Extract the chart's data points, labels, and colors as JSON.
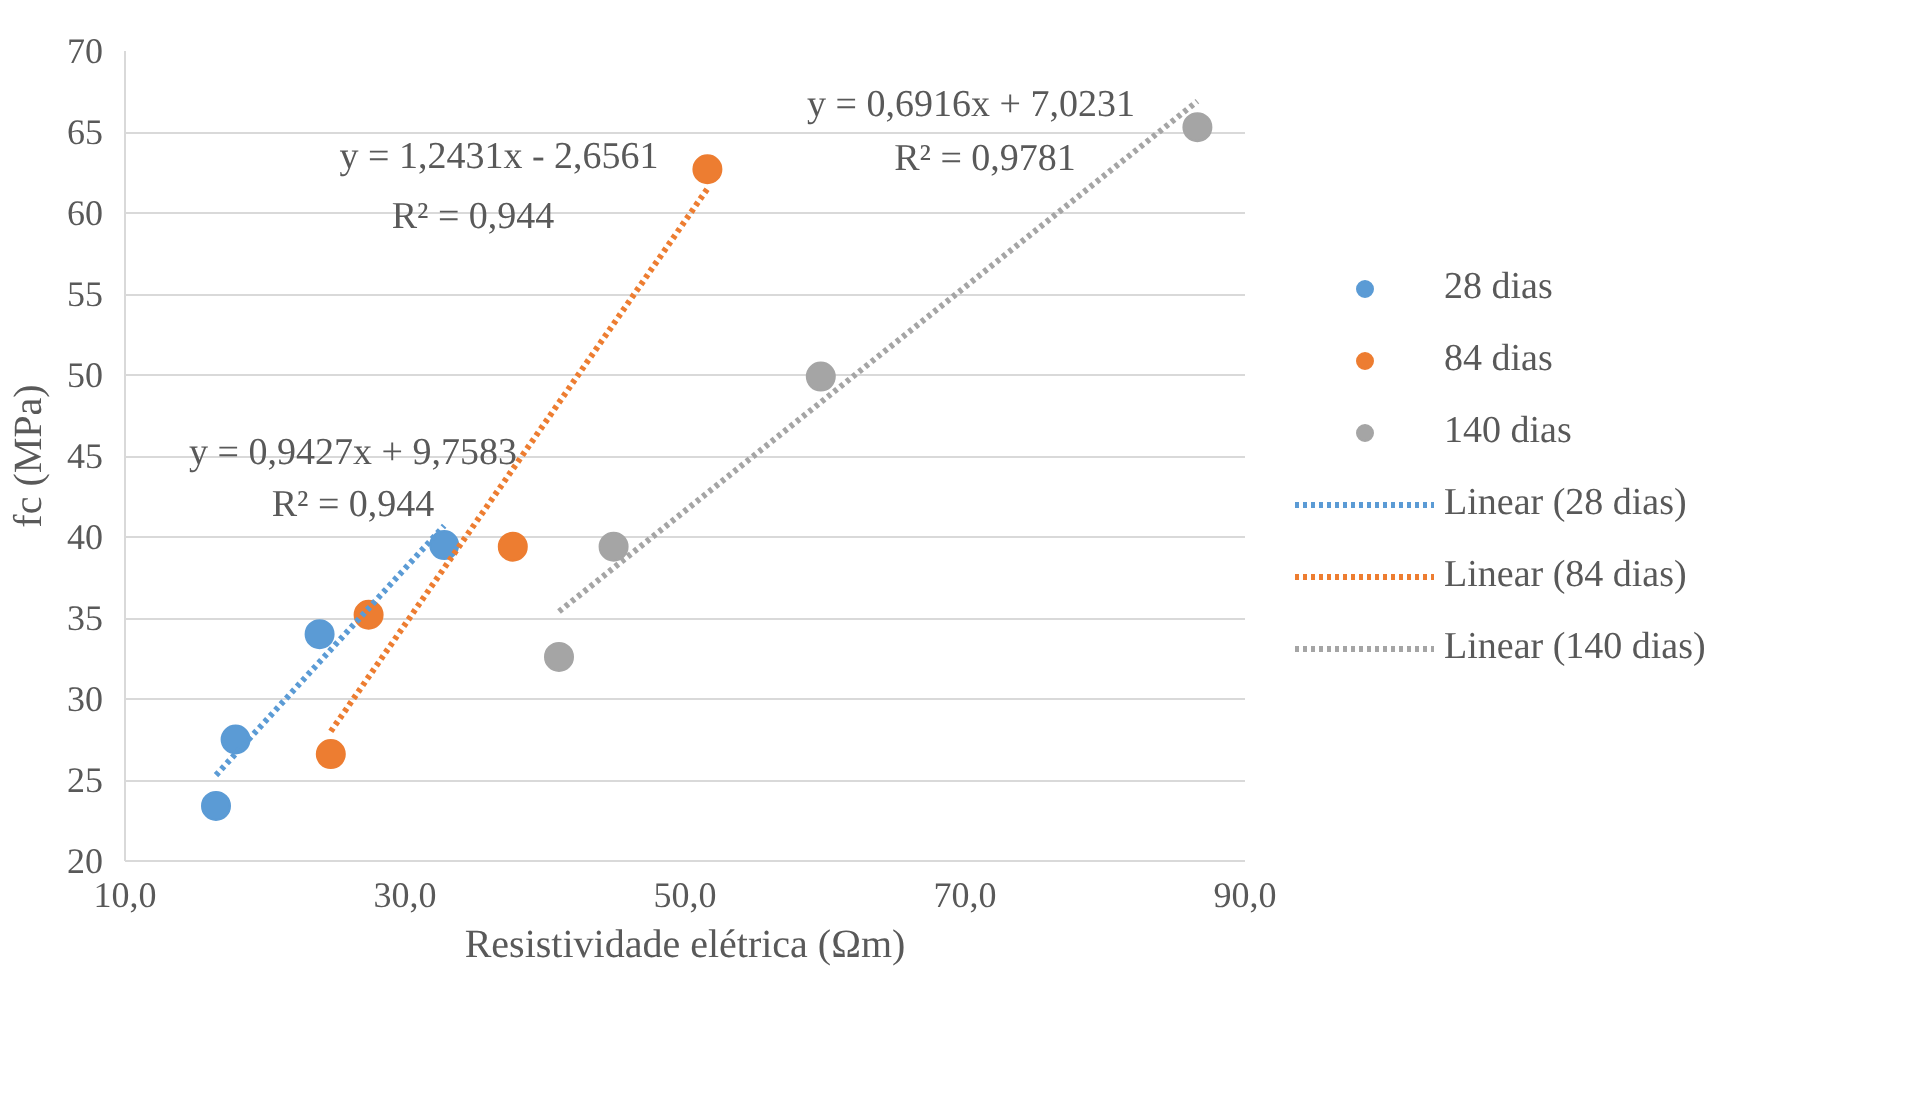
{
  "chart_data": {
    "type": "scatter",
    "xlabel": "Resistividade elétrica (Ωm)",
    "ylabel": "fc (MPa)",
    "xlim": [
      10,
      90
    ],
    "ylim": [
      20,
      70
    ],
    "xticks": [
      {
        "value": 10,
        "label": "10,0"
      },
      {
        "value": 30,
        "label": "30,0"
      },
      {
        "value": 50,
        "label": "50,0"
      },
      {
        "value": 70,
        "label": "70,0"
      },
      {
        "value": 90,
        "label": "90,0"
      }
    ],
    "yticks": [
      20,
      25,
      30,
      35,
      40,
      45,
      50,
      55,
      60,
      65,
      70
    ],
    "grid": "y",
    "legend": "right",
    "series": [
      {
        "name": "28 dias",
        "marker": "circle",
        "color": "#5b9bd5",
        "x": [
          16.5,
          17.9,
          23.9,
          32.8
        ],
        "values": [
          23.4,
          27.5,
          34.0,
          39.5
        ]
      },
      {
        "name": "84 dias",
        "marker": "circle",
        "color": "#ed7d31",
        "x": [
          24.7,
          27.4,
          37.7,
          51.6
        ],
        "values": [
          26.6,
          35.2,
          39.4,
          62.7
        ]
      },
      {
        "name": "140 dias",
        "marker": "circle",
        "color": "#a5a5a5",
        "x": [
          41.0,
          44.9,
          59.7,
          86.6
        ],
        "values": [
          32.6,
          39.4,
          49.9,
          65.3
        ]
      },
      {
        "name": "Linear (28 dias)",
        "type": "line",
        "line_style": "dotted",
        "color": "#5b9bd5",
        "x": [
          16.5,
          32.8
        ],
        "values": [
          25.3,
          40.7
        ]
      },
      {
        "name": "Linear (84 dias)",
        "type": "line",
        "line_style": "dotted",
        "color": "#ed7d31",
        "x": [
          24.7,
          51.6
        ],
        "values": [
          28.0,
          61.5
        ]
      },
      {
        "name": "Linear (140 dias)",
        "type": "line",
        "line_style": "dotted",
        "color": "#a5a5a5",
        "x": [
          41.0,
          86.6
        ],
        "values": [
          35.4,
          66.9
        ]
      }
    ],
    "annotations": [
      "y = 0,9427x + 9,7583",
      "R² = 0,944",
      "y = 1,2431x - 2,6561",
      "R² = 0,944",
      "y = 0,6916x + 7,0231",
      "R² = 0,9781"
    ]
  }
}
